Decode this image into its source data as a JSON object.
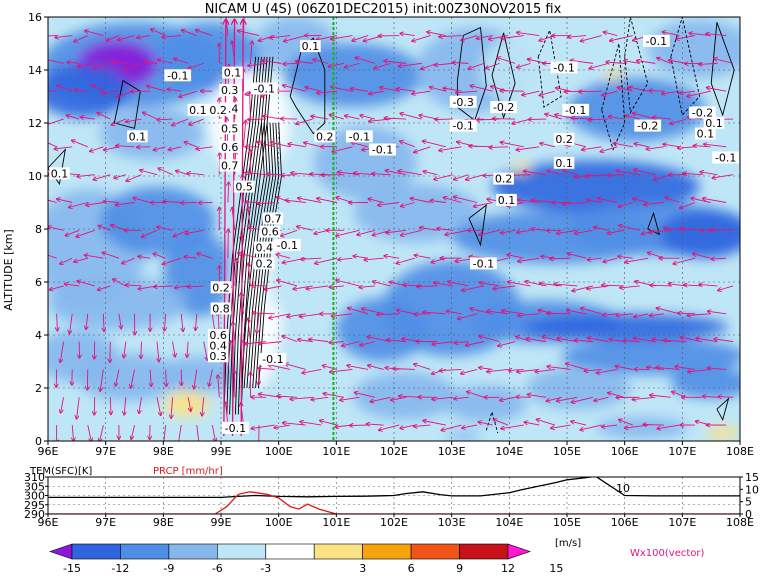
{
  "title": "NICAM U (4S) (06Z01DEC2015) init:00Z30NOV2015 fix",
  "colors": {
    "neg15": "#8a18d8",
    "neg12": "#2f66df",
    "neg9": "#4f8ee6",
    "neg6": "#86b8ee",
    "neg3": "#bfe6f6",
    "zero": "#ffffff",
    "pos3": "#fbe385",
    "pos6": "#f7a30e",
    "pos9": "#f05418",
    "pos12": "#c7121c",
    "pos15": "#ff19d0",
    "vector": "#e0147c",
    "contour": "#000000",
    "marker": "#19b21a",
    "prcp": "#e01818",
    "tem": "#000000"
  },
  "chart_data": [
    {
      "type": "heatmap",
      "title": "NICAM U (4S) (06Z01DEC2015) init:00Z30NOV2015 fix",
      "ylabel": "ALTITUDE [km]",
      "xlabel": "",
      "xlim": [
        96,
        108
      ],
      "ylim": [
        0,
        16
      ],
      "xticks": [
        "96E",
        "97E",
        "98E",
        "99E",
        "100E",
        "101E",
        "102E",
        "103E",
        "104E",
        "105E",
        "106E",
        "107E",
        "108E"
      ],
      "yticks": [
        "0",
        "2",
        "4",
        "6",
        "8",
        "10",
        "12",
        "14",
        "16"
      ],
      "grid": true,
      "marker_longitude": 100.95,
      "contour_labels": [
        {
          "text": "0.1",
          "lon": 100.55,
          "alt": 14.9
        },
        {
          "text": "-0.1",
          "lon": 98.25,
          "alt": 13.8
        },
        {
          "text": "0.1",
          "lon": 99.2,
          "alt": 13.9
        },
        {
          "text": "-0.1",
          "lon": 99.75,
          "alt": 13.3
        },
        {
          "text": "0.3",
          "lon": 99.15,
          "alt": 13.25
        },
        {
          "text": "0.4",
          "lon": 99.15,
          "alt": 12.55
        },
        {
          "text": "0.1",
          "lon": 98.6,
          "alt": 12.5
        },
        {
          "text": "0.2",
          "lon": 98.95,
          "alt": 12.5
        },
        {
          "text": "0.5",
          "lon": 99.15,
          "alt": 11.8
        },
        {
          "text": "0.6",
          "lon": 99.15,
          "alt": 11.1
        },
        {
          "text": "0.7",
          "lon": 99.15,
          "alt": 10.4
        },
        {
          "text": "0.1",
          "lon": 97.55,
          "alt": 11.5
        },
        {
          "text": "0.1",
          "lon": 96.2,
          "alt": 10.1
        },
        {
          "text": "0.2",
          "lon": 100.8,
          "alt": 11.5
        },
        {
          "text": "-0.1",
          "lon": 101.4,
          "alt": 11.5
        },
        {
          "text": "-0.1",
          "lon": 101.8,
          "alt": 11.0
        },
        {
          "text": "0.5",
          "lon": 99.4,
          "alt": 9.6
        },
        {
          "text": "0.7",
          "lon": 99.9,
          "alt": 8.4
        },
        {
          "text": "0.6",
          "lon": 99.85,
          "alt": 7.9
        },
        {
          "text": "0.4",
          "lon": 99.75,
          "alt": 7.3
        },
        {
          "text": "-0.1",
          "lon": 100.15,
          "alt": 7.4
        },
        {
          "text": "0.2",
          "lon": 99.75,
          "alt": 6.7
        },
        {
          "text": "0.2",
          "lon": 99.0,
          "alt": 5.8
        },
        {
          "text": "0.8",
          "lon": 99.0,
          "alt": 5.0
        },
        {
          "text": "0.6",
          "lon": 98.95,
          "alt": 4.0
        },
        {
          "text": "0.4",
          "lon": 98.95,
          "alt": 3.6
        },
        {
          "text": "0.3",
          "lon": 98.95,
          "alt": 3.2
        },
        {
          "text": "-0.1",
          "lon": 99.9,
          "alt": 3.1
        },
        {
          "text": "-0.1",
          "lon": 99.25,
          "alt": 0.5
        },
        {
          "text": "-0.3",
          "lon": 103.2,
          "alt": 12.8
        },
        {
          "text": "-0.2",
          "lon": 103.9,
          "alt": 12.6
        },
        {
          "text": "-0.1",
          "lon": 103.2,
          "alt": 11.9
        },
        {
          "text": "-0.1",
          "lon": 104.95,
          "alt": 14.1
        },
        {
          "text": "-0.1",
          "lon": 106.55,
          "alt": 15.1
        },
        {
          "text": "-0.1",
          "lon": 105.15,
          "alt": 12.5
        },
        {
          "text": "0.2",
          "lon": 104.95,
          "alt": 11.4
        },
        {
          "text": "0.1",
          "lon": 104.95,
          "alt": 10.5
        },
        {
          "text": "0.2",
          "lon": 103.9,
          "alt": 9.9
        },
        {
          "text": "0.1",
          "lon": 103.95,
          "alt": 9.1
        },
        {
          "text": "-0.1",
          "lon": 103.55,
          "alt": 6.7
        },
        {
          "text": "-0.2",
          "lon": 106.4,
          "alt": 11.9
        },
        {
          "text": "-0.2",
          "lon": 107.35,
          "alt": 12.4
        },
        {
          "text": "0.1",
          "lon": 107.4,
          "alt": 11.6
        },
        {
          "text": "0.1",
          "lon": 107.55,
          "alt": 12.0
        },
        {
          "text": "-0.1",
          "lon": 107.75,
          "alt": 10.7
        }
      ]
    },
    {
      "type": "line",
      "xlim": [
        96,
        108
      ],
      "xticks": [
        "96E",
        "97E",
        "98E",
        "99E",
        "100E",
        "101E",
        "102E",
        "103E",
        "104E",
        "105E",
        "106E",
        "107E",
        "108E"
      ],
      "series": [
        {
          "name": "TEM(SFC)[K]",
          "axis": "left",
          "ylim": [
            290,
            310
          ],
          "yticks": [
            "290",
            "295",
            "300",
            "305",
            "310"
          ],
          "x": [
            96,
            96.5,
            97,
            97.5,
            98,
            98.5,
            99,
            99.3,
            99.6,
            100,
            100.5,
            101,
            101.5,
            102,
            102.2,
            102.5,
            102.8,
            103,
            103.5,
            104,
            104.2,
            104.5,
            104.8,
            105,
            105.3,
            105.5,
            106,
            106.5,
            107,
            107.5,
            108
          ],
          "values": [
            299,
            299,
            299,
            299,
            299,
            299,
            299,
            299.5,
            300,
            299.5,
            299.3,
            299.5,
            299.6,
            300,
            301,
            302,
            300.5,
            299.8,
            299.8,
            301.5,
            303,
            305,
            307,
            308.5,
            309.5,
            310.3,
            300,
            299.8,
            299.8,
            299.8,
            299.8
          ]
        },
        {
          "name": "PRCP [mm/hr]",
          "axis": "right",
          "ylim": [
            0,
            15
          ],
          "yticks": [
            "0",
            "5",
            "10",
            "15"
          ],
          "x": [
            96,
            98,
            98.9,
            99.1,
            99.3,
            99.5,
            99.8,
            100,
            100.2,
            100.35,
            100.5,
            100.7,
            101,
            108
          ],
          "values": [
            0,
            0,
            0,
            3,
            8,
            9,
            8,
            6.5,
            3,
            2,
            4,
            2,
            0,
            0
          ]
        }
      ],
      "annotations": [
        "10"
      ]
    }
  ],
  "colorbar": {
    "labels": [
      "-15",
      "-12",
      "-9",
      "-6",
      "-3",
      "3",
      "6",
      "9",
      "12",
      "15"
    ],
    "unit": "[m/s]",
    "colors": [
      "#8a18d8",
      "#2f66df",
      "#4f8ee6",
      "#86b8ee",
      "#bfe6f6",
      "#ffffff",
      "#fbe385",
      "#f7a30e",
      "#f05418",
      "#c7121c",
      "#ff19d0"
    ]
  },
  "vector_label": "Wx100(vector)"
}
